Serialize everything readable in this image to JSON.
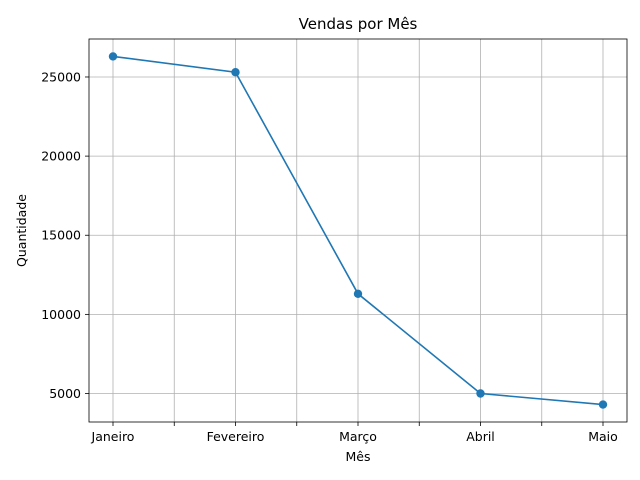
{
  "chart_data": {
    "type": "line",
    "title": "Vendas por Mês",
    "xlabel": "Mês",
    "ylabel": "Quantidade",
    "categories": [
      "Janeiro",
      "Fevereiro",
      "Março",
      "Abril",
      "Maio"
    ],
    "series": [
      {
        "values": [
          26300,
          25300,
          11300,
          5000,
          4300
        ],
        "color": "#1f77b4",
        "marker": "circle"
      }
    ],
    "ylim": [
      3200,
      27400
    ],
    "yticks": [
      5000,
      10000,
      15000,
      20000,
      25000
    ],
    "grid": true,
    "legend": false
  }
}
